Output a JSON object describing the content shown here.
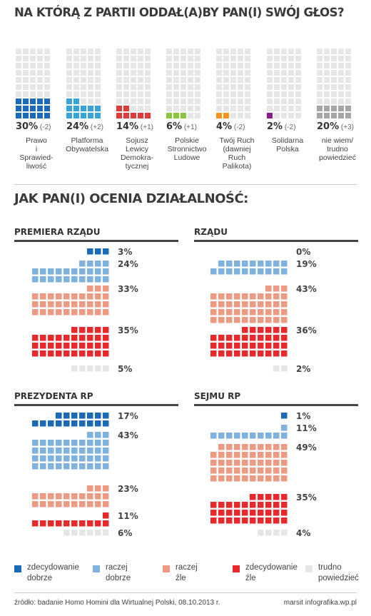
{
  "titles": {
    "top": "NA KTÓRĄ Z PARTII ODDAŁ(A)BY PAN(I) SWÓJ GŁOS?",
    "bottom": "JAK PAN(I) OCENIA DZIAŁALNOŚĆ:"
  },
  "chart_data": [
    {
      "type": "bar",
      "title": "NA KTÓRĄ Z PARTII ODDAŁ(A)BY PAN(I) SWÓJ GŁOS?",
      "categories": [
        "Prawo i Sprawiedliwość",
        "Platforma Obywatelska",
        "Sojusz Lewicy Demokratycznej",
        "Polskie Stronnictwo Ludowe",
        "Twój Ruch (dawniej Ruch Palikota)",
        "Solidarna Polska",
        "nie wiem/ trudno powiedzieć"
      ],
      "values": [
        30,
        24,
        14,
        6,
        4,
        2,
        20
      ],
      "changes": [
        "(-2)",
        "(+2)",
        "(+1)",
        "(+1)",
        "(-2)",
        "(-2)",
        "(+3)"
      ],
      "pct_labels": [
        "30%",
        "24%",
        "14%",
        "6%",
        "4%",
        "2%",
        "20%"
      ],
      "colors": [
        "#1a6ab5",
        "#3aa3dc",
        "#e03a3a",
        "#8cc63f",
        "#f7941d",
        "#8b1a8b",
        "#a6a6a6"
      ],
      "name_lines": [
        [
          "Prawo",
          "i",
          "Sprawied-",
          "liwość"
        ],
        [
          "Platforma",
          "Obywatelska"
        ],
        [
          "Sojusz",
          "Lewicy",
          "Demokra-",
          "tycznej"
        ],
        [
          "Polskie",
          "Stronnictwo",
          "Ludowe"
        ],
        [
          "Twój Ruch",
          "(dawniej",
          "Ruch",
          "Palikota)"
        ],
        [
          "Solidarna",
          "Polska"
        ],
        [
          "nie wiem/",
          "trudno",
          "powiedzieć"
        ]
      ]
    },
    {
      "type": "bar",
      "title": "PREMIERA RZĄDU",
      "categories": [
        "zdecydowanie dobrze",
        "raczej dobrze",
        "raczej źle",
        "zdecydowanie źle",
        "trudno powiedzieć"
      ],
      "values": [
        3,
        24,
        33,
        35,
        5
      ],
      "labels": [
        "3%",
        "24%",
        "33%",
        "35%",
        "5%"
      ]
    },
    {
      "type": "bar",
      "title": "RZĄDU",
      "categories": [
        "zdecydowanie dobrze",
        "raczej dobrze",
        "raczej źle",
        "zdecydowanie źle",
        "trudno powiedzieć"
      ],
      "values": [
        0,
        19,
        43,
        36,
        2
      ],
      "labels": [
        "0%",
        "19%",
        "43%",
        "36%",
        "2%"
      ]
    },
    {
      "type": "bar",
      "title": "PREZYDENTA RP",
      "categories": [
        "zdecydowanie dobrze",
        "raczej dobrze",
        "raczej źle",
        "zdecydowanie źle",
        "trudno powiedzieć"
      ],
      "values": [
        17,
        43,
        23,
        11,
        6
      ],
      "labels": [
        "17%",
        "43%",
        "23%",
        "11%",
        "6%"
      ]
    },
    {
      "type": "bar",
      "title": "SEJMU RP",
      "categories": [
        "zdecydowanie dobrze",
        "raczej dobrze",
        "raczej źle",
        "zdecydowanie źle",
        "trudno powiedzieć"
      ],
      "values": [
        1,
        11,
        49,
        35,
        4
      ],
      "labels": [
        "1%",
        "11%",
        "49%",
        "35%",
        "4%"
      ]
    }
  ],
  "rating_colors": [
    "#1a6ab5",
    "#7fb2de",
    "#ec9b82",
    "#e8292b",
    "#e6e6e6"
  ],
  "legend": [
    {
      "line1": "zdecydowanie",
      "line2": "dobrze",
      "color": "#1a6ab5"
    },
    {
      "line1": "raczej",
      "line2": "dobrze",
      "color": "#7fb2de"
    },
    {
      "line1": "raczej",
      "line2": "źle",
      "color": "#ec9b82"
    },
    {
      "line1": "zdecydowanie",
      "line2": "źle",
      "color": "#e8292b"
    },
    {
      "line1": "trudno",
      "line2": "powiedzieć",
      "color": "#e6e6e6"
    }
  ],
  "footer": {
    "source": "źródło: badanie Homo Homini dla Wirtualnej Polski, 08.10.2013 r.",
    "credit": "marsit infografika.wp.pl"
  }
}
